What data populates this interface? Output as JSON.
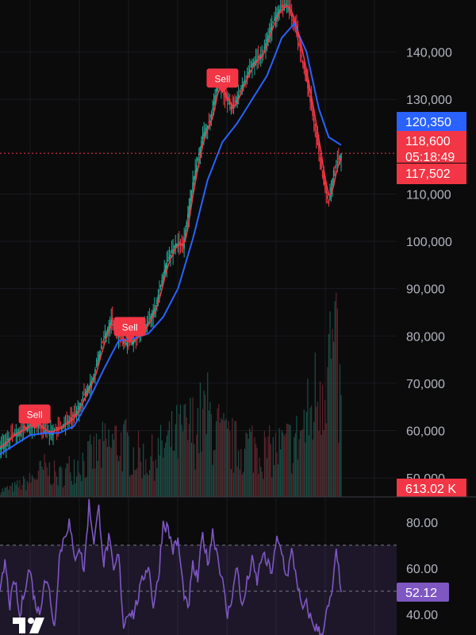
{
  "chart_data": {
    "type": "candlestick",
    "price_axis": {
      "ticks": [
        {
          "value": 140000,
          "label": "140,000"
        },
        {
          "value": 130000,
          "label": "130,000"
        },
        {
          "value": 110000,
          "label": "110,000"
        },
        {
          "value": 100000,
          "label": "100,000"
        },
        {
          "value": 90000,
          "label": "90,000"
        },
        {
          "value": 80000,
          "label": "80,000"
        },
        {
          "value": 70000,
          "label": "70,000"
        },
        {
          "value": 60000,
          "label": "60,000"
        },
        {
          "value": 50000,
          "label": "50,000"
        }
      ],
      "range": [
        46000,
        151000
      ]
    },
    "rsi_axis": {
      "ticks": [
        {
          "value": 80,
          "label": "80.00"
        },
        {
          "value": 60,
          "label": "60.00"
        },
        {
          "value": 40,
          "label": "40.00"
        }
      ],
      "range": [
        31,
        91
      ],
      "band": [
        30,
        70
      ],
      "dashed_levels": [
        70,
        50
      ]
    },
    "badges": {
      "ma_value": {
        "label": "120,350",
        "value": 120350,
        "color": "#2962ff"
      },
      "last_price": {
        "label": "118,600",
        "value": 118600,
        "color": "#f23645"
      },
      "countdown": {
        "label": "05:18:49",
        "color": "#f23645"
      },
      "ma2_value": {
        "label": "117,502",
        "value": 117502,
        "color": "#f23645"
      },
      "volume": {
        "label": "613.02 K",
        "color": "#f23645"
      },
      "rsi": {
        "label": "52.12",
        "value": 52.12,
        "color": "#7e57c2"
      }
    },
    "signals": [
      {
        "label": "Sell",
        "price": 63500,
        "index": 28
      },
      {
        "label": "Sell",
        "price": 82000,
        "index": 105
      },
      {
        "label": "Sell",
        "price": 134500,
        "index": 180
      }
    ],
    "price_path": [
      [
        0,
        56500
      ],
      [
        10,
        59000
      ],
      [
        20,
        60500
      ],
      [
        28,
        62000
      ],
      [
        38,
        59500
      ],
      [
        48,
        60500
      ],
      [
        60,
        63000
      ],
      [
        68,
        67500
      ],
      [
        75,
        71000
      ],
      [
        82,
        78000
      ],
      [
        90,
        83500
      ],
      [
        96,
        80000
      ],
      [
        102,
        78500
      ],
      [
        110,
        79500
      ],
      [
        118,
        82000
      ],
      [
        126,
        86500
      ],
      [
        134,
        95000
      ],
      [
        142,
        99500
      ],
      [
        148,
        99000
      ],
      [
        156,
        112500
      ],
      [
        164,
        122500
      ],
      [
        170,
        125500
      ],
      [
        176,
        133500
      ],
      [
        182,
        130500
      ],
      [
        188,
        128000
      ],
      [
        196,
        133000
      ],
      [
        204,
        137500
      ],
      [
        212,
        139500
      ],
      [
        220,
        146000
      ],
      [
        226,
        149000
      ],
      [
        232,
        150000
      ],
      [
        238,
        146000
      ],
      [
        244,
        139000
      ],
      [
        250,
        131000
      ],
      [
        256,
        122000
      ],
      [
        262,
        112000
      ],
      [
        266,
        108000
      ],
      [
        270,
        115000
      ],
      [
        276,
        118600
      ]
    ],
    "ma_blue_path": [
      [
        0,
        55000
      ],
      [
        12,
        57000
      ],
      [
        24,
        59000
      ],
      [
        36,
        59500
      ],
      [
        48,
        59500
      ],
      [
        60,
        61000
      ],
      [
        72,
        66500
      ],
      [
        84,
        73000
      ],
      [
        96,
        79000
      ],
      [
        108,
        79500
      ],
      [
        120,
        80500
      ],
      [
        132,
        84000
      ],
      [
        144,
        90000
      ],
      [
        156,
        100500
      ],
      [
        168,
        113000
      ],
      [
        180,
        121000
      ],
      [
        192,
        125000
      ],
      [
        204,
        130000
      ],
      [
        216,
        135000
      ],
      [
        228,
        143000
      ],
      [
        238,
        146000
      ],
      [
        248,
        140000
      ],
      [
        258,
        128000
      ],
      [
        266,
        122000
      ],
      [
        276,
        120350
      ]
    ],
    "rsi_path": [
      [
        0,
        48
      ],
      [
        4,
        63
      ],
      [
        8,
        44
      ],
      [
        12,
        55
      ],
      [
        16,
        38
      ],
      [
        20,
        52
      ],
      [
        24,
        60
      ],
      [
        28,
        46
      ],
      [
        32,
        40
      ],
      [
        36,
        56
      ],
      [
        40,
        50
      ],
      [
        44,
        34
      ],
      [
        48,
        65
      ],
      [
        52,
        74
      ],
      [
        56,
        80
      ],
      [
        60,
        64
      ],
      [
        64,
        70
      ],
      [
        68,
        59
      ],
      [
        72,
        88
      ],
      [
        76,
        72
      ],
      [
        80,
        86
      ],
      [
        84,
        62
      ],
      [
        88,
        73
      ],
      [
        92,
        58
      ],
      [
        96,
        66
      ],
      [
        100,
        35
      ],
      [
        104,
        42
      ],
      [
        108,
        40
      ],
      [
        112,
        48
      ],
      [
        116,
        56
      ],
      [
        120,
        62
      ],
      [
        124,
        44
      ],
      [
        128,
        55
      ],
      [
        132,
        80
      ],
      [
        136,
        77
      ],
      [
        140,
        68
      ],
      [
        144,
        72
      ],
      [
        148,
        52
      ],
      [
        152,
        41
      ],
      [
        156,
        61
      ],
      [
        160,
        55
      ],
      [
        164,
        75
      ],
      [
        168,
        62
      ],
      [
        172,
        76
      ],
      [
        176,
        66
      ],
      [
        180,
        54
      ],
      [
        184,
        39
      ],
      [
        188,
        49
      ],
      [
        192,
        61
      ],
      [
        196,
        42
      ],
      [
        200,
        54
      ],
      [
        204,
        63
      ],
      [
        208,
        54
      ],
      [
        212,
        66
      ],
      [
        216,
        62
      ],
      [
        220,
        59
      ],
      [
        224,
        72
      ],
      [
        228,
        67
      ],
      [
        232,
        56
      ],
      [
        236,
        67
      ],
      [
        240,
        56
      ],
      [
        244,
        42
      ],
      [
        248,
        44
      ],
      [
        252,
        37
      ],
      [
        256,
        34
      ],
      [
        260,
        31
      ],
      [
        264,
        40
      ],
      [
        268,
        47
      ],
      [
        272,
        66
      ],
      [
        276,
        52.12
      ]
    ],
    "volume_profile": [
      [
        0,
        3
      ],
      [
        12,
        5
      ],
      [
        24,
        8
      ],
      [
        36,
        14
      ],
      [
        48,
        10
      ],
      [
        60,
        16
      ],
      [
        72,
        19
      ],
      [
        84,
        24
      ],
      [
        96,
        28
      ],
      [
        108,
        22
      ],
      [
        120,
        18
      ],
      [
        132,
        24
      ],
      [
        144,
        30
      ],
      [
        156,
        34
      ],
      [
        168,
        40
      ],
      [
        180,
        28
      ],
      [
        192,
        24
      ],
      [
        204,
        26
      ],
      [
        216,
        22
      ],
      [
        228,
        24
      ],
      [
        240,
        28
      ],
      [
        252,
        42
      ],
      [
        260,
        62
      ],
      [
        266,
        72
      ],
      [
        272,
        65
      ],
      [
        276,
        40
      ]
    ]
  }
}
